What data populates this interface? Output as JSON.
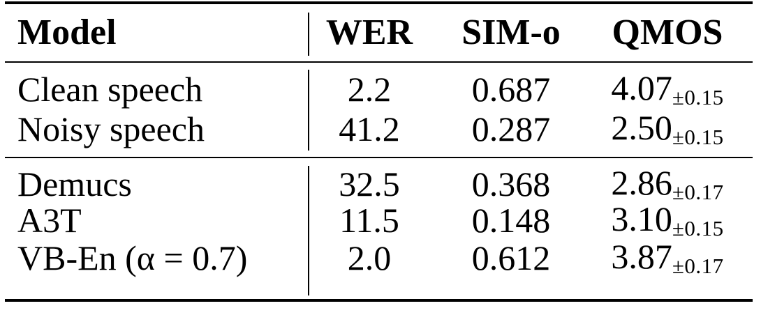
{
  "table": {
    "columns": [
      "Model",
      "WER",
      "SIM-o",
      "QMOS"
    ],
    "groups": [
      {
        "rows": [
          {
            "model": "Clean speech",
            "wer": "2.2",
            "sim_o": "0.687",
            "qmos": "4.07",
            "qmos_pm": "±0.15"
          },
          {
            "model": "Noisy speech",
            "wer": "41.2",
            "sim_o": "0.287",
            "qmos": "2.50",
            "qmos_pm": "±0.15"
          }
        ]
      },
      {
        "rows": [
          {
            "model": "Demucs",
            "wer": "32.5",
            "sim_o": "0.368",
            "qmos": "2.86",
            "qmos_pm": "±0.17"
          },
          {
            "model": "A3T",
            "wer": "11.5",
            "sim_o": "0.148",
            "qmos": "3.10",
            "qmos_pm": "±0.15"
          },
          {
            "model": "VB-En (α = 0.7)",
            "wer": "2.0",
            "sim_o": "0.612",
            "qmos": "3.87",
            "qmos_pm": "±0.17"
          }
        ]
      }
    ]
  },
  "colors": {
    "background": "#ffffff",
    "text": "#000000",
    "rule": "#000000"
  }
}
